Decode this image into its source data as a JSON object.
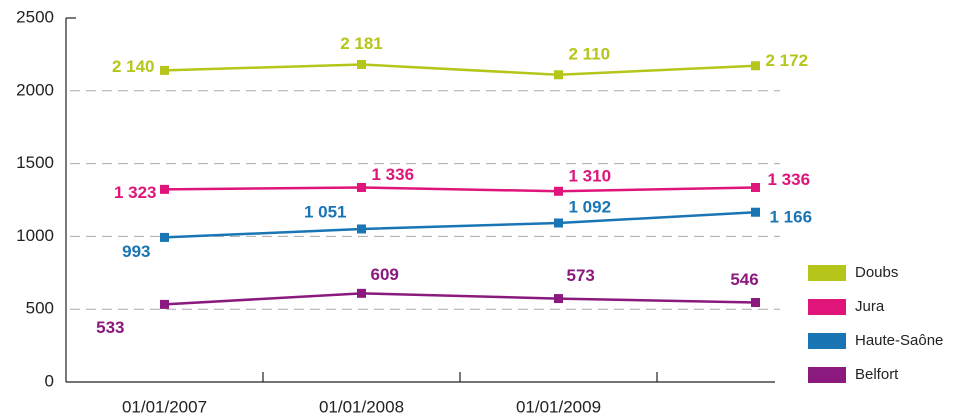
{
  "chart_data": {
    "type": "line",
    "categories": [
      "01/01/2007",
      "01/01/2008",
      "01/01/2009",
      null
    ],
    "series": [
      {
        "name": "Doubs",
        "color": "#b5c51a",
        "values": [
          2140,
          2181,
          2110,
          2172
        ],
        "value_labels": [
          "2 140",
          "2 181",
          "2 110",
          "2 172"
        ]
      },
      {
        "name": "Jura",
        "color": "#e0157a",
        "values": [
          1323,
          1336,
          1310,
          1336
        ],
        "value_labels": [
          "1 323",
          "1 336",
          "1 310",
          "1 336"
        ]
      },
      {
        "name": "Haute-Saône",
        "color": "#1a75b5",
        "values": [
          993,
          1051,
          1092,
          1166
        ],
        "value_labels": [
          "993",
          "1 051",
          "1 092",
          "1 166"
        ]
      },
      {
        "name": "Belfort",
        "color": "#8b1a7e",
        "values": [
          533,
          609,
          573,
          546
        ],
        "value_labels": [
          "533",
          "609",
          "573",
          "546"
        ]
      }
    ],
    "ylim": [
      0,
      2500
    ],
    "yticks": [
      0,
      500,
      1000,
      1500,
      2000,
      2500
    ],
    "grid": true,
    "legend": "right"
  }
}
